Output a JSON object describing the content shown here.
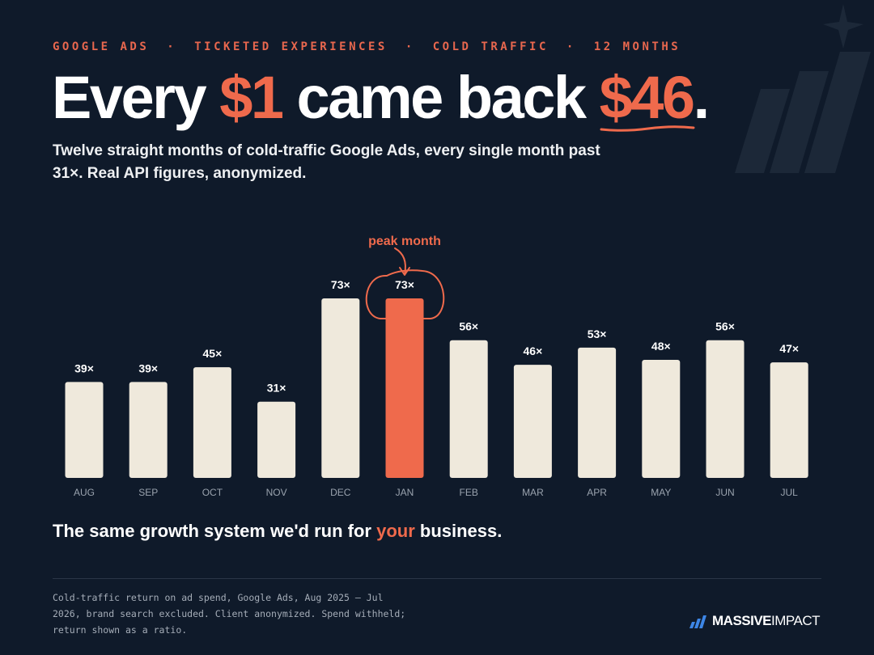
{
  "header": {
    "kicker": [
      "GOOGLE ADS",
      "TICKETED EXPERIENCES",
      "COLD TRAFFIC",
      "12 MONTHS"
    ],
    "kicker_separator": "·",
    "headline": {
      "part1": "Every ",
      "accent1": "$1",
      "part2": " came back ",
      "accent2": "$46",
      "part3": "."
    },
    "subhead": "Twelve straight months of cold-traffic Google Ads, every single month past 31×. Real API figures, anonymized."
  },
  "chart_data": {
    "type": "bar",
    "categories": [
      "AUG",
      "SEP",
      "OCT",
      "NOV",
      "DEC",
      "JAN",
      "FEB",
      "MAR",
      "APR",
      "MAY",
      "JUN",
      "JUL"
    ],
    "values": [
      39,
      39,
      45,
      31,
      73,
      73,
      56,
      46,
      53,
      48,
      56,
      47
    ],
    "value_suffix": "×",
    "highlight_index": 5,
    "annotation": "peak month",
    "ylim": [
      0,
      73
    ],
    "colors": {
      "bar": "#efe9dc",
      "highlight": "#ef6a4c",
      "label": "#ffffff",
      "tick": "#9aa3ae"
    }
  },
  "tagline": {
    "part1": "The same growth system we'd run for ",
    "accent": "your",
    "part2": " business."
  },
  "footnote": "Cold-traffic return on ad spend, Google Ads, Aug 2025 – Jul 2026, brand search excluded. Client anonymized. Spend withheld; return shown as a ratio.",
  "logo": {
    "bold": "MASSIVE",
    "regular": "IMPACT"
  },
  "colors": {
    "background": "#0f1a2a",
    "accent": "#ef6a4c"
  }
}
